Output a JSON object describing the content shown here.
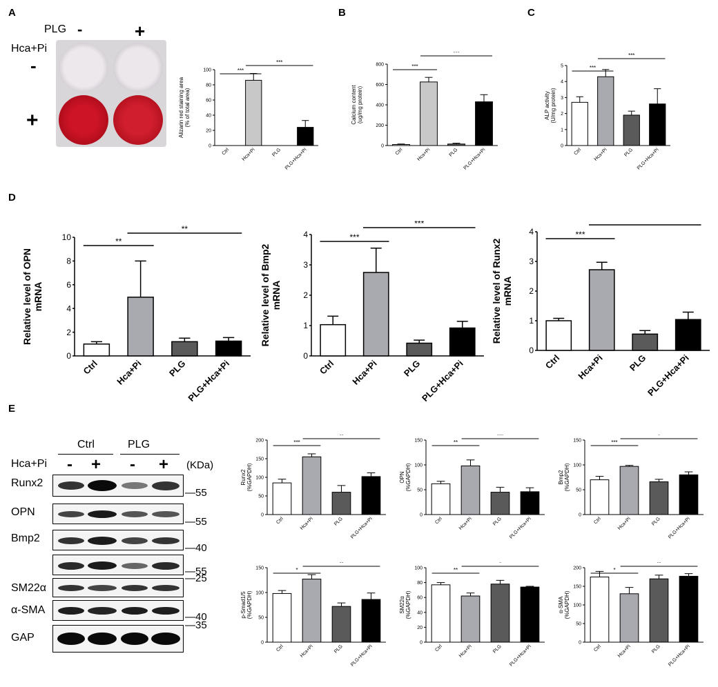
{
  "panels": {
    "A": "A",
    "B": "B",
    "C": "C",
    "D": "D",
    "E": "E"
  },
  "plate": {
    "plg_label": "PLG",
    "minus": "-",
    "plus": "+",
    "hca_label": "Hca+Pi",
    "row_minus": "-",
    "row_plus": "+"
  },
  "blot": {
    "group_ctrl": "Ctrl",
    "group_plg": "PLG",
    "hca_label": "Hca+Pi",
    "lanes": [
      "-",
      "+",
      "-",
      "+"
    ],
    "unit": "(KDa)",
    "rows": [
      {
        "label": "Runx2",
        "marker": "55"
      },
      {
        "label": "OPN",
        "marker": "55"
      },
      {
        "label": "Bmp2",
        "marker": "40"
      },
      {
        "label": "",
        "marker": "55"
      },
      {
        "label": "SM22α",
        "marker": "25"
      },
      {
        "label": "α-SMA",
        "marker": "40"
      },
      {
        "label": "GAP",
        "marker": "35"
      }
    ]
  },
  "chart_data": [
    {
      "id": "A",
      "type": "bar",
      "categories": [
        "Ctrl",
        "Hca+Pi",
        "PLG",
        "PLG+Hca+Pi"
      ],
      "values": [
        0,
        86,
        0,
        24
      ],
      "errors": [
        0,
        9,
        0,
        9
      ],
      "ylabel": "Alizarin red staining area\n(% of total area)",
      "ylim": [
        0,
        100
      ],
      "yticks": [
        "0",
        "20",
        "40",
        "60",
        "80",
        "100"
      ],
      "sig": [
        {
          "from": 0,
          "to": 1,
          "text": "***"
        },
        {
          "from": 1,
          "to": 3,
          "text": "***"
        }
      ]
    },
    {
      "id": "B",
      "type": "bar",
      "categories": [
        "Ctrl",
        "Hca+Pi",
        "PLG",
        "PLG+Hca+Pi"
      ],
      "values": [
        10,
        625,
        15,
        430
      ],
      "errors": [
        5,
        45,
        8,
        70
      ],
      "ylabel": "Calcium content\n(ug/mg protein)",
      "ylim": [
        0,
        800
      ],
      "yticks": [
        "0",
        "200",
        "400",
        "600",
        "800"
      ],
      "sig": [
        {
          "from": 0,
          "to": 1,
          "text": "***"
        },
        {
          "from": 1,
          "to": 3,
          "text": "***"
        }
      ]
    },
    {
      "id": "C",
      "type": "bar",
      "categories": [
        "Ctrl",
        "Hca+Pi",
        "PLG",
        "PLG+Hca+Pi"
      ],
      "values": [
        2.7,
        4.3,
        1.9,
        2.6
      ],
      "errors": [
        0.35,
        0.45,
        0.25,
        0.95
      ],
      "ylabel": "ALP activity\n(U/mg protein)",
      "ylim": [
        0,
        5
      ],
      "yticks": [
        "0",
        "1",
        "2",
        "3",
        "4",
        "5"
      ],
      "sig": [
        {
          "from": 0,
          "to": 1,
          "text": "***"
        },
        {
          "from": 1,
          "to": 3,
          "text": "***"
        }
      ]
    },
    {
      "id": "D1",
      "type": "bar",
      "categories": [
        "Ctrl",
        "Hca+Pi",
        "PLG",
        "PLG+Hca+Pi"
      ],
      "values": [
        1.0,
        4.95,
        1.2,
        1.25
      ],
      "errors": [
        0.2,
        3.05,
        0.3,
        0.3
      ],
      "ylabel": "Relative level of OPN\nmRNA",
      "ylim": [
        0,
        10
      ],
      "yticks": [
        "0",
        "2",
        "4",
        "6",
        "8",
        "10"
      ],
      "sig": [
        {
          "from": 0,
          "to": 1,
          "text": "**"
        },
        {
          "from": 1,
          "to": 3,
          "text": "**"
        }
      ]
    },
    {
      "id": "D2",
      "type": "bar",
      "categories": [
        "Ctrl",
        "Hca+Pi",
        "PLG",
        "PLG+Hca+Pi"
      ],
      "values": [
        1.03,
        2.75,
        0.42,
        0.92
      ],
      "errors": [
        0.28,
        0.8,
        0.1,
        0.22
      ],
      "ylabel": "Relative level of Bmp2\nmRNA",
      "ylim": [
        0,
        4
      ],
      "yticks": [
        "0",
        "1",
        "2",
        "3",
        "4"
      ],
      "sig": [
        {
          "from": 0,
          "to": 1,
          "text": "***"
        },
        {
          "from": 1,
          "to": 3,
          "text": "***"
        }
      ]
    },
    {
      "id": "D3",
      "type": "bar",
      "categories": [
        "Ctrl",
        "Hca+Pi",
        "PLG",
        "PLG+Hca+Pi"
      ],
      "values": [
        1.0,
        2.72,
        0.55,
        1.04
      ],
      "errors": [
        0.08,
        0.25,
        0.12,
        0.25
      ],
      "ylabel": "Relative level of Runx2\nmRNA",
      "ylim": [
        0,
        4
      ],
      "yticks": [
        "0",
        "1",
        "2",
        "3",
        "4"
      ],
      "sig": [
        {
          "from": 0,
          "to": 1,
          "text": "***"
        },
        {
          "from": 1,
          "to": 3,
          "text": "***"
        }
      ]
    },
    {
      "id": "E1",
      "type": "bar",
      "categories": [
        "Ctrl",
        "Hca+Pi",
        "PLG",
        "PLG+Hca+Pi"
      ],
      "values": [
        85,
        155,
        60,
        102
      ],
      "errors": [
        10,
        8,
        18,
        10
      ],
      "ylabel": "Runx2\n(%GAPDH)",
      "ylim": [
        0,
        200
      ],
      "yticks": [
        "0",
        "50",
        "100",
        "150",
        "200"
      ],
      "sig": [
        {
          "from": 0,
          "to": 1,
          "text": "***"
        },
        {
          "from": 1,
          "to": 3,
          "text": "**"
        }
      ]
    },
    {
      "id": "E2",
      "type": "bar",
      "categories": [
        "Ctrl",
        "Hca+Pi",
        "PLG",
        "PLG+Hca+Pi"
      ],
      "values": [
        62,
        98,
        45,
        46
      ],
      "errors": [
        5,
        12,
        10,
        8
      ],
      "ylabel": "OPN\n(%GAPDH)",
      "ylim": [
        0,
        150
      ],
      "yticks": [
        "0",
        "50",
        "100",
        "150"
      ],
      "sig": [
        {
          "from": 0,
          "to": 1,
          "text": "**"
        },
        {
          "from": 1,
          "to": 3,
          "text": "***"
        }
      ]
    },
    {
      "id": "E3",
      "type": "bar",
      "categories": [
        "Ctrl",
        "Hca+Pi",
        "PLG",
        "PLG+Hca+Pi"
      ],
      "values": [
        70,
        97,
        66,
        80
      ],
      "errors": [
        7,
        2,
        5,
        6
      ],
      "ylabel": "Bmp2\n(%GAPDH)",
      "ylim": [
        0,
        150
      ],
      "yticks": [
        "0",
        "50",
        "100",
        "150"
      ],
      "sig": [
        {
          "from": 0,
          "to": 1,
          "text": "***"
        },
        {
          "from": 1,
          "to": 3,
          "text": "*"
        }
      ]
    },
    {
      "id": "E4",
      "type": "bar",
      "categories": [
        "Ctrl",
        "Hca+Pi",
        "PLG",
        "PLG+Hca+Pi"
      ],
      "values": [
        98,
        127,
        72,
        86
      ],
      "errors": [
        6,
        9,
        7,
        13
      ],
      "ylabel": "p-Smad1/5\n(%GAPDH)",
      "ylim": [
        0,
        150
      ],
      "yticks": [
        "0",
        "50",
        "100",
        "150"
      ],
      "sig": [
        {
          "from": 0,
          "to": 1,
          "text": "*"
        },
        {
          "from": 1,
          "to": 3,
          "text": "**"
        }
      ]
    },
    {
      "id": "E5",
      "type": "bar",
      "categories": [
        "Ctrl",
        "Hca+Pi",
        "PLG",
        "PLG+Hca+Pi"
      ],
      "values": [
        77,
        62,
        78,
        74
      ],
      "errors": [
        3,
        4,
        5,
        1
      ],
      "ylabel": "SM22α\n(%GAPDH)",
      "ylim": [
        0,
        100
      ],
      "yticks": [
        "0",
        "20",
        "40",
        "60",
        "80",
        "100"
      ],
      "sig": [
        {
          "from": 0,
          "to": 1,
          "text": "**"
        },
        {
          "from": 1,
          "to": 3,
          "text": "*"
        }
      ]
    },
    {
      "id": "E6",
      "type": "bar",
      "categories": [
        "Ctrl",
        "Hca+Pi",
        "PLG",
        "PLG+Hca+Pi"
      ],
      "values": [
        175,
        130,
        170,
        177
      ],
      "errors": [
        15,
        17,
        10,
        7
      ],
      "ylabel": "α-SMA\n(%GAPDH)",
      "ylim": [
        0,
        200
      ],
      "yticks": [
        "0",
        "50",
        "100",
        "150",
        "200"
      ],
      "sig": [
        {
          "from": 0,
          "to": 1,
          "text": "*"
        },
        {
          "from": 1,
          "to": 3,
          "text": "**"
        }
      ]
    }
  ],
  "colors": {
    "ctrl": "#ffffff",
    "hca": "#c8c8c8",
    "plg": "#646464",
    "plg_hca": "#000000",
    "hca_d": "#a9a9b0",
    "plg_d": "#5a5a5a"
  }
}
